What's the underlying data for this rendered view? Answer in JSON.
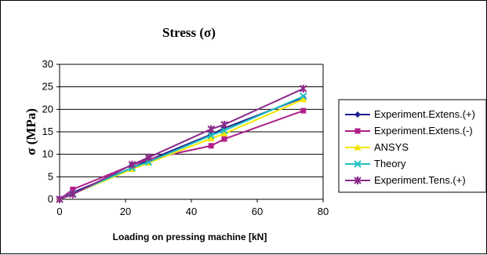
{
  "chart_data": {
    "type": "line",
    "title": "Stress (σ)",
    "xlabel": "Loading on pressing machine [kN]",
    "ylabel": "σ (MPa)",
    "xlim": [
      0,
      80
    ],
    "ylim": [
      0,
      30
    ],
    "xticks": [
      0,
      20,
      40,
      60,
      80
    ],
    "yticks": [
      0,
      5,
      10,
      15,
      20,
      25,
      30
    ],
    "grid": "horizontal",
    "legend": "right",
    "series": [
      {
        "name": "Experiment.Extens.(+)",
        "color": "#1f1f8f",
        "marker": "diamond",
        "x": [
          0,
          4,
          22,
          27,
          46,
          50,
          74
        ],
        "y": [
          0,
          1.5,
          7.0,
          8.7,
          14.4,
          15.8,
          22.6
        ]
      },
      {
        "name": "Experiment.Extens.(-)",
        "color": "#b0208a",
        "marker": "square",
        "x": [
          0,
          4,
          22,
          27,
          46,
          50,
          74
        ],
        "y": [
          0,
          2.2,
          7.6,
          8.9,
          11.9,
          13.4,
          19.7
        ]
      },
      {
        "name": "ANSYS",
        "color": "#f2e600",
        "marker": "triangle",
        "x": [
          0,
          4,
          22,
          27,
          46,
          50,
          74
        ],
        "y": [
          0,
          1.2,
          6.7,
          8.1,
          13.5,
          14.6,
          22.2
        ]
      },
      {
        "name": "Theory",
        "color": "#20c0c0",
        "marker": "x",
        "x": [
          0,
          4,
          22,
          27,
          46,
          50,
          74
        ],
        "y": [
          0,
          1.2,
          7.0,
          8.3,
          14.2,
          15.3,
          22.9
        ]
      },
      {
        "name": "Experiment.Tens.(+)",
        "color": "#8a2a8a",
        "marker": "star",
        "x": [
          0,
          4,
          22,
          27,
          46,
          50,
          74
        ],
        "y": [
          0,
          1.1,
          7.7,
          9.3,
          15.6,
          16.6,
          24.6
        ]
      }
    ]
  }
}
